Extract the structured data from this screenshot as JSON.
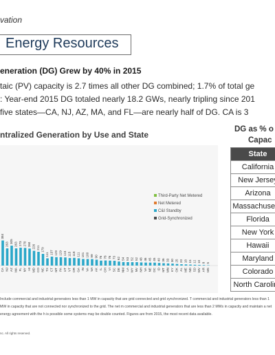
{
  "header": {
    "top_label": "vation",
    "page_title": "Energy Resources"
  },
  "sub_heading": "eneration (DG) Grew by 40% in 2015",
  "bullets": [
    "taic (PV) capacity is 2.7 times all other DG combined; 1.7% of total ge",
    ": Year-end 2015 DG totaled nearly 18.2 GWs, nearly tripling since 201",
    " five states—CA, NJ, AZ, MA, and FL—are nearly half of DG. CA is 3"
  ],
  "chart_data": {
    "type": "bar",
    "title": "ntralized Generation by Use and State",
    "categories": [
      "CA",
      "NJ",
      "AZ",
      "MA",
      "FL",
      "NY",
      "HI",
      "MD",
      "CO",
      "NC",
      "TX",
      "CT",
      "MT",
      "PA",
      "UT",
      "VT",
      "OR",
      "GA",
      "IN",
      "VA",
      "WI",
      "AK",
      "IL",
      "OH",
      "VI",
      "SC",
      "DE",
      "NM",
      "LA",
      "WY",
      "NV",
      "NH",
      "VA",
      "NE",
      "DC",
      "ID",
      "MT",
      "MN",
      "KY",
      "OK",
      "AL",
      "ME",
      "ND",
      "SD",
      "WV",
      "AR",
      "MS"
    ],
    "values": [
      384,
      263,
      305,
      263,
      273,
      270,
      260,
      226,
      211,
      179,
      111,
      137,
      129,
      129,
      124,
      115,
      118,
      111,
      101,
      100,
      99,
      90,
      76,
      78,
      76,
      73,
      62,
      54,
      53,
      52,
      52,
      48,
      46,
      45,
      45,
      40,
      36,
      33,
      30,
      25,
      20,
      18,
      15,
      12,
      10,
      8,
      5
    ],
    "legend": [
      {
        "name": "Third-Party Net Metered",
        "color": "#7fbf3f"
      },
      {
        "name": "Net Metered",
        "color": "#e07a2e"
      },
      {
        "name": "C&I Standby",
        "color": "#2aa7c9"
      },
      {
        "name": "Grid-Synchronized",
        "color": "#4a4a4a"
      }
    ],
    "ylim": [
      0,
      400
    ]
  },
  "side_panel": {
    "title_line1": "DG as % o",
    "title_line2": "Capac",
    "header": "State",
    "states": [
      "California",
      "New Jersey",
      "Arizona",
      "Massachusetts",
      "Florida",
      "New York",
      "Hawaii",
      "Maryland",
      "Colorado",
      "North Carolina"
    ]
  },
  "footnote": " Include commercial and industrial generators less than 1 MW in capacity that are grid connected and grid synchronized. T commercial and industrial generators less than 1 MW in capacity that are not connected nor synchronized to the grid. The net m commercial and industrial generators that are less than 2 MWs in capacity and maintain a net energy agreement with the h is possible some systems may be double counted. Figures are from 2015, the most recent data available.",
  "copyright": "nc. All rights reserved."
}
